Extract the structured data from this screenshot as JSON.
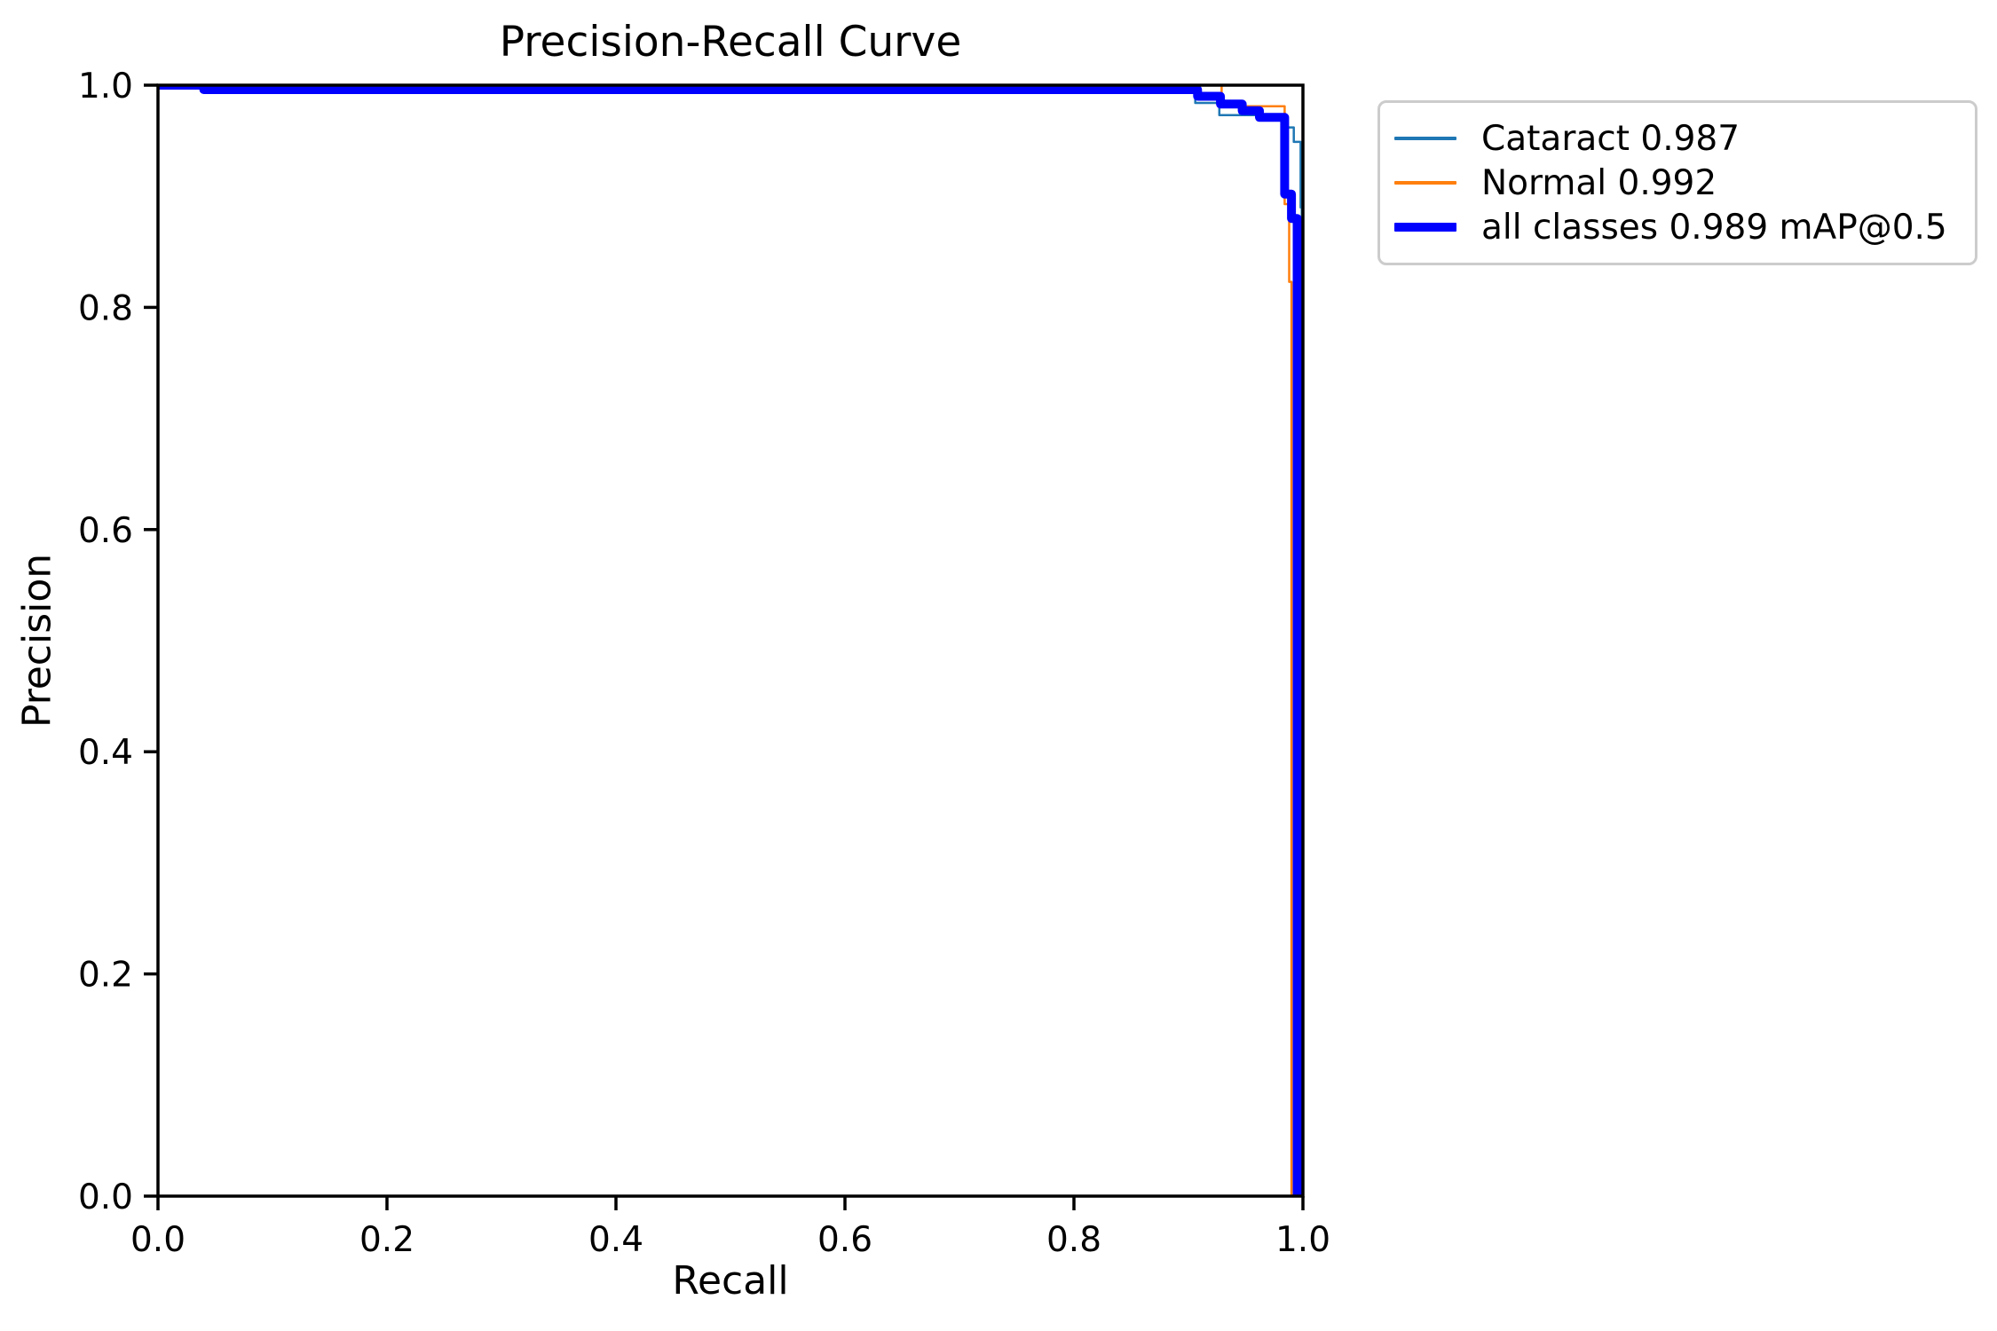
{
  "title": "Precision-Recall Curve",
  "axes": {
    "xlabel": "Recall",
    "ylabel": "Precision"
  },
  "legend": {
    "position": "upper-right-outside",
    "items": [
      {
        "label": "Cataract 0.987",
        "color": "#1f77b4"
      },
      {
        "label": "Normal 0.992",
        "color": "#ff7f0e"
      },
      {
        "label": "all classes 0.989 mAP@0.5",
        "color": "#0000ff"
      }
    ]
  },
  "chart_data": {
    "type": "line",
    "title": "Precision-Recall Curve",
    "xlabel": "Recall",
    "ylabel": "Precision",
    "xlim": [
      0.0,
      1.0
    ],
    "ylim": [
      0.0,
      1.0
    ],
    "x_ticks": [
      "0.0",
      "0.2",
      "0.4",
      "0.6",
      "0.8",
      "1.0"
    ],
    "y_ticks": [
      "0.0",
      "0.2",
      "0.4",
      "0.6",
      "0.8",
      "1.0"
    ],
    "grid": false,
    "curve_style": "step",
    "series": [
      {
        "name": "Cataract",
        "legend_label": "Cataract 0.987",
        "ap": 0.987,
        "color": "#1f77b4",
        "linewidth": 2.5,
        "points": [
          [
            0.0,
            1.0
          ],
          [
            0.906,
            1.0
          ],
          [
            0.906,
            0.984
          ],
          [
            0.927,
            0.984
          ],
          [
            0.927,
            0.973
          ],
          [
            0.985,
            0.973
          ],
          [
            0.985,
            0.962
          ],
          [
            0.992,
            0.962
          ],
          [
            0.992,
            0.949
          ],
          [
            0.998,
            0.949
          ],
          [
            0.998,
            0.89
          ],
          [
            0.999,
            0.89
          ],
          [
            0.999,
            0.0
          ]
        ]
      },
      {
        "name": "Normal",
        "legend_label": "Normal 0.992",
        "ap": 0.992,
        "color": "#ff7f0e",
        "linewidth": 2.5,
        "points": [
          [
            0.0,
            1.0
          ],
          [
            0.929,
            1.0
          ],
          [
            0.929,
            0.981
          ],
          [
            0.984,
            0.981
          ],
          [
            0.984,
            0.893
          ],
          [
            0.988,
            0.893
          ],
          [
            0.988,
            0.823
          ],
          [
            0.99,
            0.823
          ],
          [
            0.99,
            0.0
          ]
        ]
      },
      {
        "name": "all classes",
        "legend_label": "all classes 0.989 mAP@0.5",
        "map_at_0_5": 0.989,
        "color": "#0000ff",
        "linewidth": 10,
        "points": [
          [
            0.0,
            1.0
          ],
          [
            0.04,
            1.0
          ],
          [
            0.04,
            0.996
          ],
          [
            0.908,
            0.996
          ],
          [
            0.908,
            0.99
          ],
          [
            0.928,
            0.99
          ],
          [
            0.928,
            0.983
          ],
          [
            0.947,
            0.983
          ],
          [
            0.947,
            0.977
          ],
          [
            0.962,
            0.977
          ],
          [
            0.962,
            0.971
          ],
          [
            0.984,
            0.971
          ],
          [
            0.984,
            0.902
          ],
          [
            0.99,
            0.902
          ],
          [
            0.99,
            0.88
          ],
          [
            0.995,
            0.88
          ],
          [
            0.995,
            0.0
          ]
        ]
      }
    ]
  }
}
